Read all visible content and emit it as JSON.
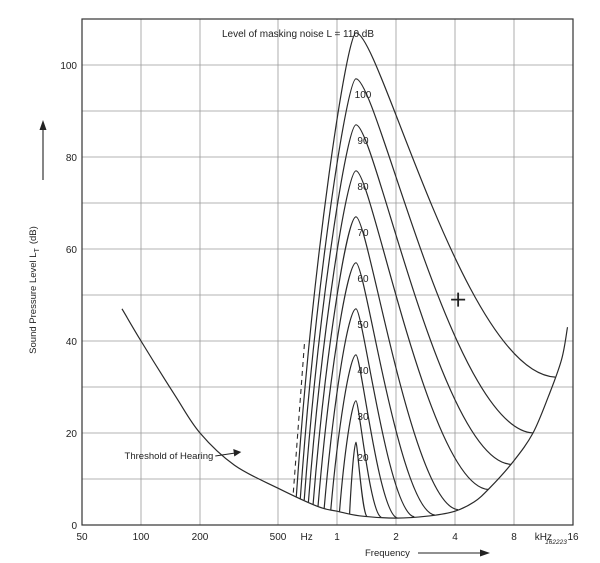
{
  "chart_data": {
    "type": "line",
    "title": "Level of masking noise  L = 110 dB",
    "xlabel": "Frequency",
    "ylabel": "Sound Pressure Level  L",
    "ylabel_sub": "T",
    "ylabel_unit": "(dB)",
    "x_scale": "log",
    "xlim_hz": [
      50,
      16000
    ],
    "ylim": [
      0,
      110
    ],
    "x_ticks": [
      {
        "hz": 50,
        "label": "50"
      },
      {
        "hz": 100,
        "label": "100"
      },
      {
        "hz": 200,
        "label": "200"
      },
      {
        "hz": 500,
        "label": "500"
      },
      {
        "hz": 1000,
        "label": "1"
      },
      {
        "hz": 2000,
        "label": "2"
      },
      {
        "hz": 4000,
        "label": "4"
      },
      {
        "hz": 8000,
        "label": "8"
      },
      {
        "hz": 16000,
        "label": "16"
      }
    ],
    "x_unit_labels": [
      {
        "hz": 700,
        "label": "Hz"
      },
      {
        "hz": 11300,
        "label": "kHz"
      }
    ],
    "y_ticks": [
      0,
      20,
      40,
      60,
      80,
      100
    ],
    "grid_y": [
      10,
      20,
      30,
      40,
      50,
      60,
      70,
      80,
      90,
      100
    ],
    "grid_x_hz": [
      100,
      200,
      500,
      1000,
      2000,
      4000,
      8000
    ],
    "threshold": {
      "name": "Threshold of Hearing",
      "points": [
        [
          80,
          47
        ],
        [
          100,
          40
        ],
        [
          150,
          28
        ],
        [
          200,
          20
        ],
        [
          300,
          13
        ],
        [
          500,
          8
        ],
        [
          800,
          4
        ],
        [
          1000,
          3
        ],
        [
          1300,
          2
        ],
        [
          2000,
          1.5
        ],
        [
          3000,
          2
        ],
        [
          4000,
          3
        ],
        [
          5000,
          5
        ],
        [
          6000,
          8
        ],
        [
          8000,
          14
        ],
        [
          10000,
          20
        ],
        [
          12000,
          28
        ],
        [
          14000,
          36
        ],
        [
          15000,
          43
        ]
      ]
    },
    "masking_series": [
      {
        "name": "20",
        "label": "20",
        "left_hz": 1160,
        "peak_hz": 1250,
        "peak_db": 18,
        "right_hz": 1420
      },
      {
        "name": "30",
        "label": "30",
        "left_hz": 1030,
        "peak_hz": 1250,
        "peak_db": 27,
        "right_hz": 1680
      },
      {
        "name": "40",
        "label": "40",
        "left_hz": 930,
        "peak_hz": 1250,
        "peak_db": 37,
        "right_hz": 2030
      },
      {
        "name": "50",
        "label": "50",
        "left_hz": 860,
        "peak_hz": 1250,
        "peak_db": 47,
        "right_hz": 2480
      },
      {
        "name": "60",
        "label": "60",
        "left_hz": 800,
        "peak_hz": 1250,
        "peak_db": 57,
        "right_hz": 3150
      },
      {
        "name": "70",
        "label": "70",
        "left_hz": 755,
        "peak_hz": 1250,
        "peak_db": 67,
        "right_hz": 4150
      },
      {
        "name": "80",
        "label": "80",
        "left_hz": 715,
        "peak_hz": 1250,
        "peak_db": 77,
        "right_hz": 5900
      },
      {
        "name": "90",
        "label": "90",
        "left_hz": 680,
        "peak_hz": 1250,
        "peak_db": 87,
        "right_hz": 7700
      },
      {
        "name": "100",
        "label": "100",
        "left_hz": 650,
        "peak_hz": 1250,
        "peak_db": 97,
        "right_hz": 10000
      },
      {
        "name": "110",
        "label": "",
        "left_hz": 620,
        "peak_hz": 1250,
        "peak_db": 107,
        "right_hz": 13000
      }
    ],
    "extra_marks": [
      {
        "name": "plus-marker",
        "label": "+",
        "hz": 4150,
        "db": 49
      }
    ],
    "annotations": [
      {
        "name": "threshold-label",
        "label": "Threshold of Hearing",
        "hz": 245,
        "db": 15
      }
    ]
  },
  "figure_number": "162223"
}
